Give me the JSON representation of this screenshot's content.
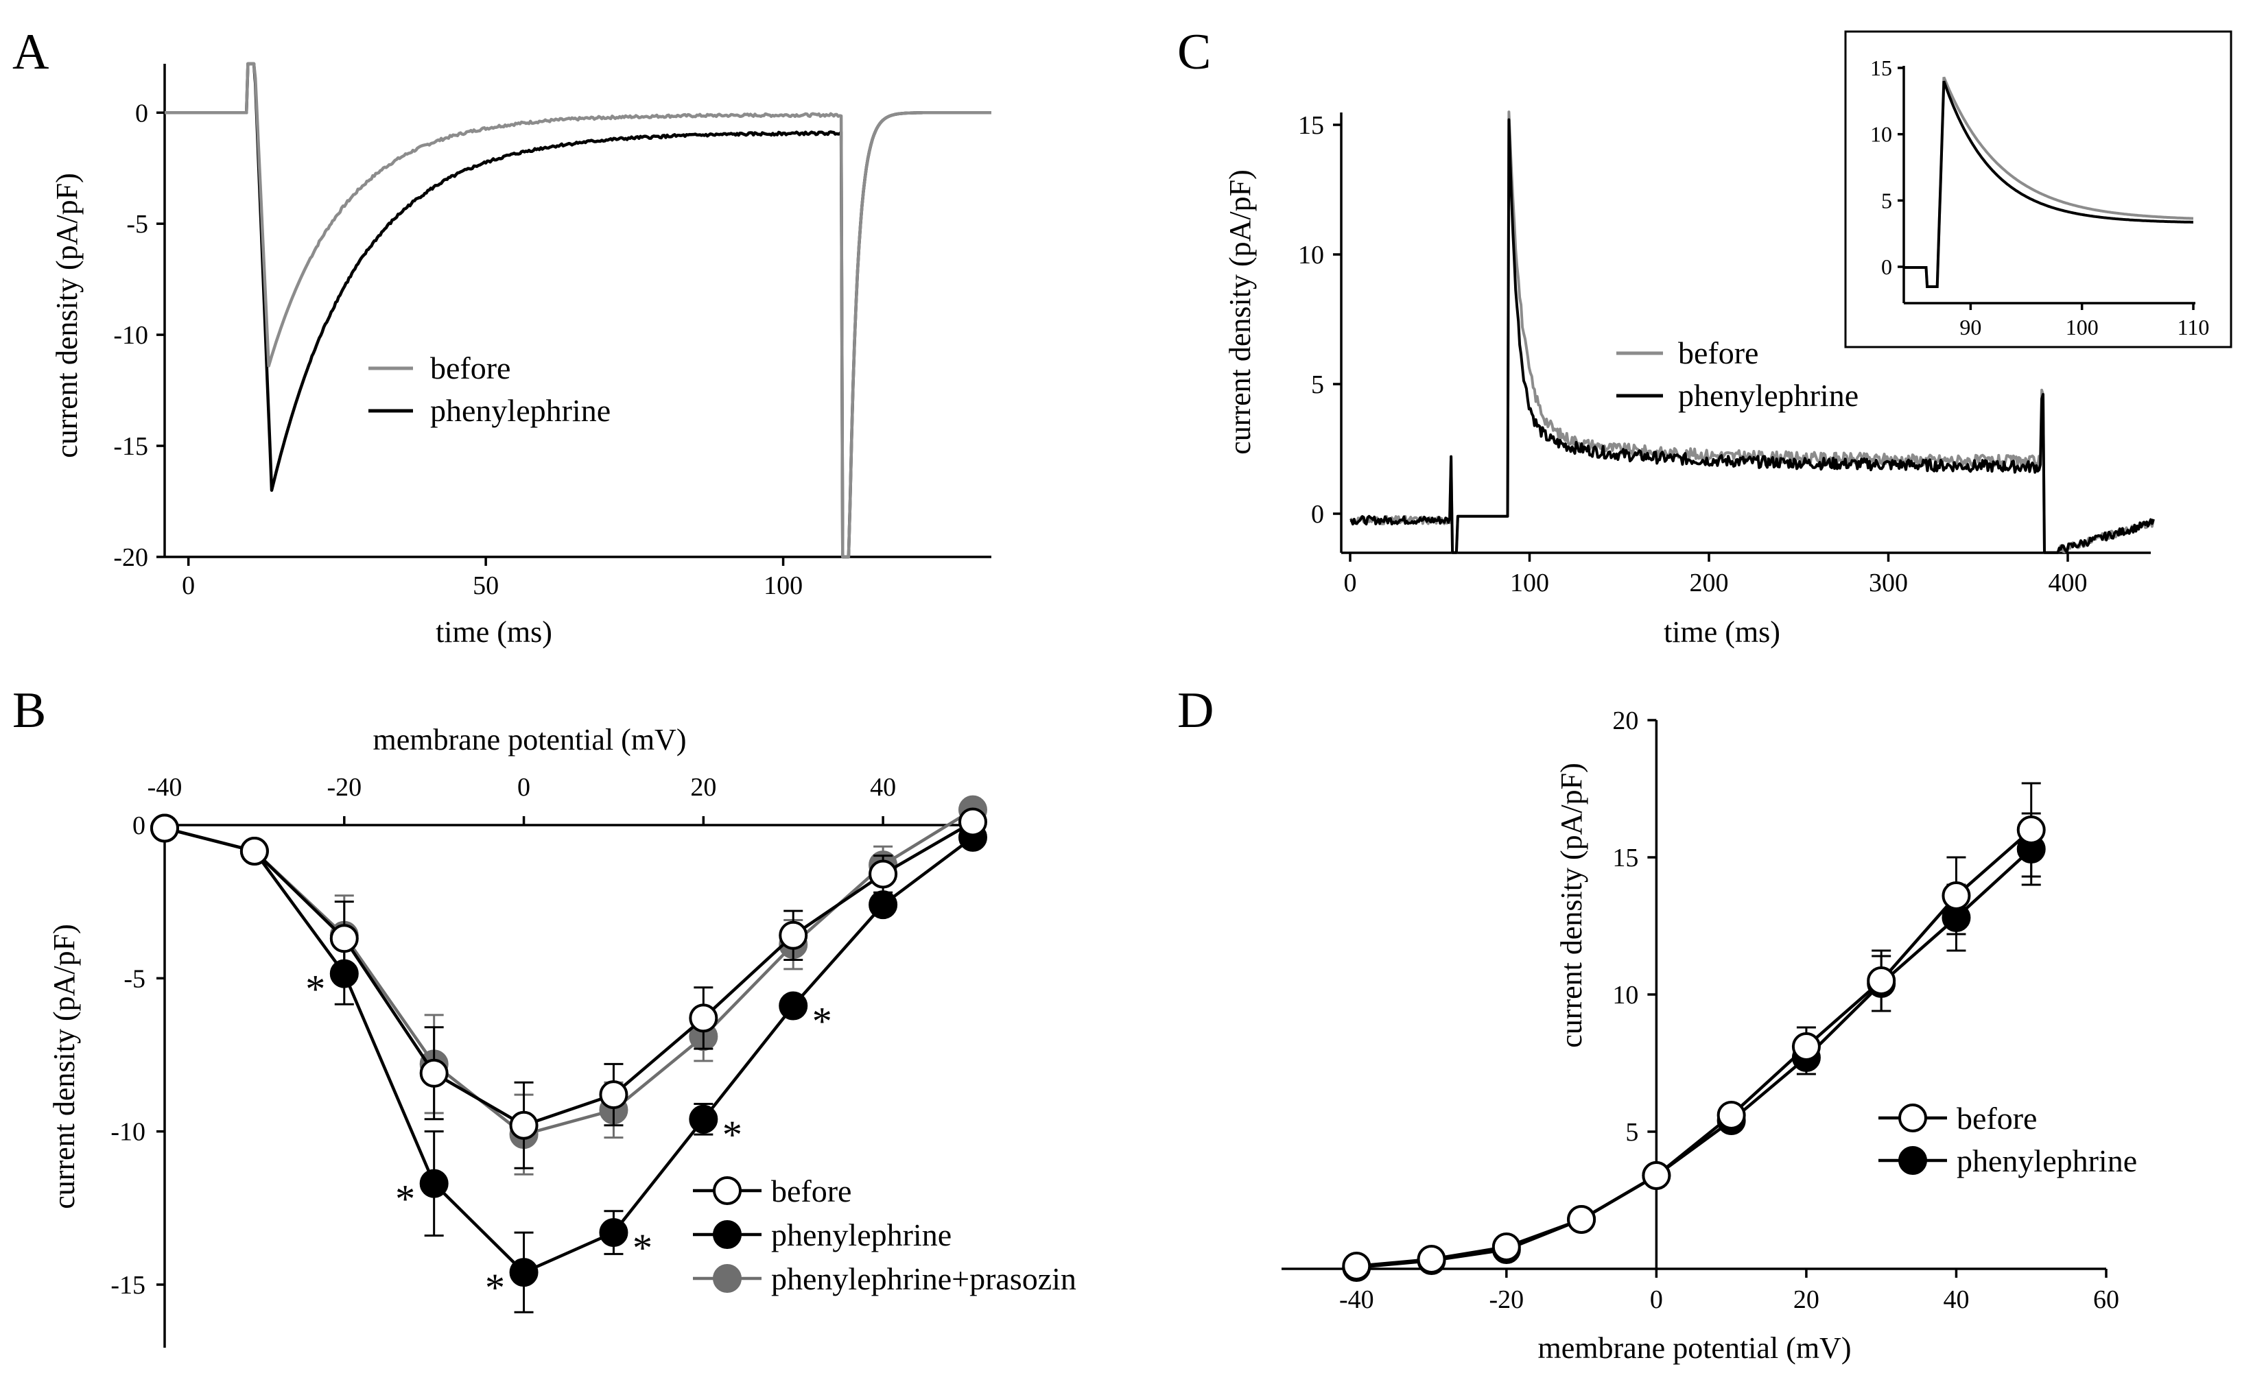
{
  "colors": {
    "before": "#8c8c8c",
    "phenylephrine": "#000000",
    "prasozin": "#6e6e6e",
    "axis": "#000000"
  },
  "chart_data": [
    {
      "panel": "A",
      "type": "line",
      "xlabel": "time (ms)",
      "ylabel": "current density (pA/pF)",
      "xlim": [
        -4,
        135
      ],
      "ylim": [
        -20,
        2.2
      ],
      "xticks": [
        0,
        50,
        100
      ],
      "yticks": [
        0,
        -5,
        -10,
        -15,
        -20
      ],
      "legend_position": "center",
      "series": [
        {
          "name": "before",
          "color": "before",
          "peak_time": 13.5,
          "peak": -11.4,
          "tau": 12.5,
          "plateau": -0.1
        },
        {
          "name": "phenylephrine",
          "color": "phenylephrine",
          "peak_time": 14,
          "peak": -17.0,
          "tau": 14.5,
          "plateau": -0.9
        }
      ]
    },
    {
      "panel": "B",
      "type": "line",
      "xlabel": "membrane potential (mV)",
      "ylabel": "current density (pA/pF)",
      "xaxis_position": "top",
      "xlim": [
        -40,
        50
      ],
      "ylim": [
        -17,
        0
      ],
      "xticks": [
        -40,
        -20,
        0,
        20,
        40
      ],
      "yticks": [
        0,
        -5,
        -10,
        -15
      ],
      "legend_position": "bottom-right",
      "x": [
        -40,
        -30,
        -20,
        -10,
        0,
        10,
        20,
        30,
        40,
        50
      ],
      "series": [
        {
          "name": "before",
          "marker": "open",
          "color": "phenylephrine",
          "values": [
            -0.1,
            -0.85,
            -3.7,
            -8.1,
            -9.8,
            -8.8,
            -6.3,
            -3.6,
            -1.6,
            0.1
          ],
          "errors": [
            0,
            0,
            1.2,
            1.5,
            1.4,
            1.0,
            1.0,
            0.8,
            0.6,
            0
          ]
        },
        {
          "name": "phenylephrine",
          "marker": "filled",
          "color": "phenylephrine",
          "values": [
            -0.1,
            -0.85,
            -4.85,
            -11.7,
            -14.6,
            -13.3,
            -9.6,
            -5.9,
            -2.6,
            -0.4
          ],
          "errors": [
            0,
            0,
            1.0,
            1.7,
            1.3,
            0.7,
            0.5,
            0.3,
            0.3,
            0.2
          ]
        },
        {
          "name": "phenylephrine+prasozin",
          "marker": "filled",
          "color": "prasozin",
          "values": [
            -0.1,
            -0.85,
            -3.6,
            -7.8,
            -10.1,
            -9.3,
            -6.9,
            -3.9,
            -1.3,
            0.5
          ],
          "errors": [
            0,
            0,
            1.3,
            1.6,
            1.3,
            0.9,
            0.8,
            0.8,
            0.6,
            0
          ]
        }
      ],
      "significance_marks": [
        {
          "text": "*",
          "x": -20,
          "side": "left"
        },
        {
          "text": "*",
          "x": -10,
          "side": "left"
        },
        {
          "text": "*",
          "x": 0,
          "side": "left"
        },
        {
          "text": "*",
          "x": 10,
          "side": "right"
        },
        {
          "text": "*",
          "x": 20,
          "side": "right"
        },
        {
          "text": "*",
          "x": 30,
          "side": "right"
        }
      ]
    },
    {
      "panel": "C",
      "type": "line",
      "xlabel": "time (ms)",
      "ylabel": "current density (pA/pF)",
      "xlim": [
        -5,
        450
      ],
      "ylim": [
        -1.5,
        15.5
      ],
      "xticks": [
        0,
        100,
        200,
        300,
        400
      ],
      "yticks": [
        0,
        5,
        10,
        15
      ],
      "legend_position": "center",
      "series": [
        {
          "name": "before",
          "color": "before",
          "peak_time": 88.5,
          "peak": 14.3,
          "tau": 7.0,
          "plateau": 2.3
        },
        {
          "name": "phenylephrine",
          "color": "phenylephrine",
          "peak_time": 88.5,
          "peak": 14.0,
          "tau": 5.0,
          "plateau": 2.1
        }
      ],
      "inset": {
        "xlim": [
          84,
          110
        ],
        "ylim": [
          -1.5,
          15.5
        ],
        "xticks": [
          90,
          100,
          110
        ],
        "yticks": [
          0,
          5,
          10,
          15
        ]
      }
    },
    {
      "panel": "D",
      "type": "line",
      "xlabel": "membrane potential (mV)",
      "ylabel": "current density (pA/pF)",
      "xlim": [
        -50,
        60
      ],
      "ylim": [
        0,
        20
      ],
      "xticks": [
        -40,
        -20,
        0,
        20,
        40,
        60
      ],
      "yticks": [
        5,
        10,
        15,
        20
      ],
      "legend_position": "bottom-right",
      "x": [
        -40,
        -30,
        -20,
        -10,
        0,
        10,
        20,
        30,
        40,
        50
      ],
      "series": [
        {
          "name": "before",
          "marker": "open",
          "color": "phenylephrine",
          "values": [
            0.1,
            0.35,
            0.8,
            1.8,
            3.4,
            5.6,
            8.1,
            10.5,
            13.6,
            16.0
          ],
          "errors": [
            0,
            0,
            0,
            0,
            0,
            0,
            0.7,
            1.1,
            1.4,
            1.7
          ]
        },
        {
          "name": "phenylephrine",
          "marker": "filled",
          "color": "phenylephrine",
          "values": [
            0.05,
            0.3,
            0.7,
            1.8,
            3.4,
            5.4,
            7.7,
            10.4,
            12.8,
            15.3
          ],
          "errors": [
            0,
            0,
            0,
            0,
            0,
            0,
            0.6,
            1.0,
            1.2,
            1.3
          ]
        }
      ]
    }
  ]
}
